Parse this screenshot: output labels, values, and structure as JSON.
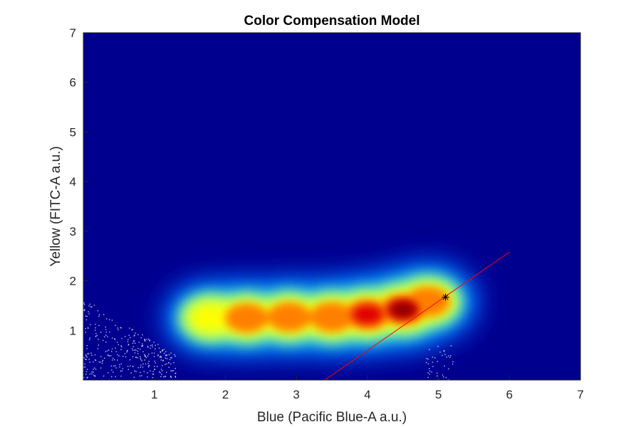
{
  "chart_data": {
    "type": "heatmap",
    "title": "Color Compensation Model",
    "xlabel": "Blue (Pacific Blue-A a.u.)",
    "ylabel": "Yellow (FITC-A a.u.)",
    "xlim": [
      0,
      7
    ],
    "ylim": [
      0,
      7
    ],
    "xticks": [
      1,
      2,
      3,
      4,
      5,
      6,
      7
    ],
    "yticks": [
      1,
      2,
      3,
      4,
      5,
      6,
      7
    ],
    "grid": false,
    "colormap": "jet",
    "background_color": "#00008f",
    "density_ridge": [
      {
        "x": 1.8,
        "y": 1.25,
        "intensity": 0.55
      },
      {
        "x": 2.3,
        "y": 1.25,
        "intensity": 0.72
      },
      {
        "x": 2.9,
        "y": 1.27,
        "intensity": 0.75
      },
      {
        "x": 3.5,
        "y": 1.27,
        "intensity": 0.8
      },
      {
        "x": 4.0,
        "y": 1.32,
        "intensity": 0.88
      },
      {
        "x": 4.5,
        "y": 1.42,
        "intensity": 1.0
      },
      {
        "x": 4.85,
        "y": 1.58,
        "intensity": 0.8
      }
    ],
    "scatter_clusters": [
      {
        "name": "",
        "color": "#ffffff",
        "x_range": [
          0.0,
          1.3
        ],
        "y_range": [
          0.05,
          1.7
        ]
      },
      {
        "name": "",
        "color": "#ffffff",
        "x_range": [
          4.8,
          5.2
        ],
        "y_range": [
          0.0,
          0.7
        ]
      }
    ],
    "fit_line": {
      "color": "#ff0000",
      "x": [
        3.4,
        6.0
      ],
      "y": [
        0.0,
        2.58
      ]
    },
    "marker": {
      "symbol": "asterisk",
      "color": "#000000",
      "x": 5.1,
      "y": 1.67
    }
  }
}
